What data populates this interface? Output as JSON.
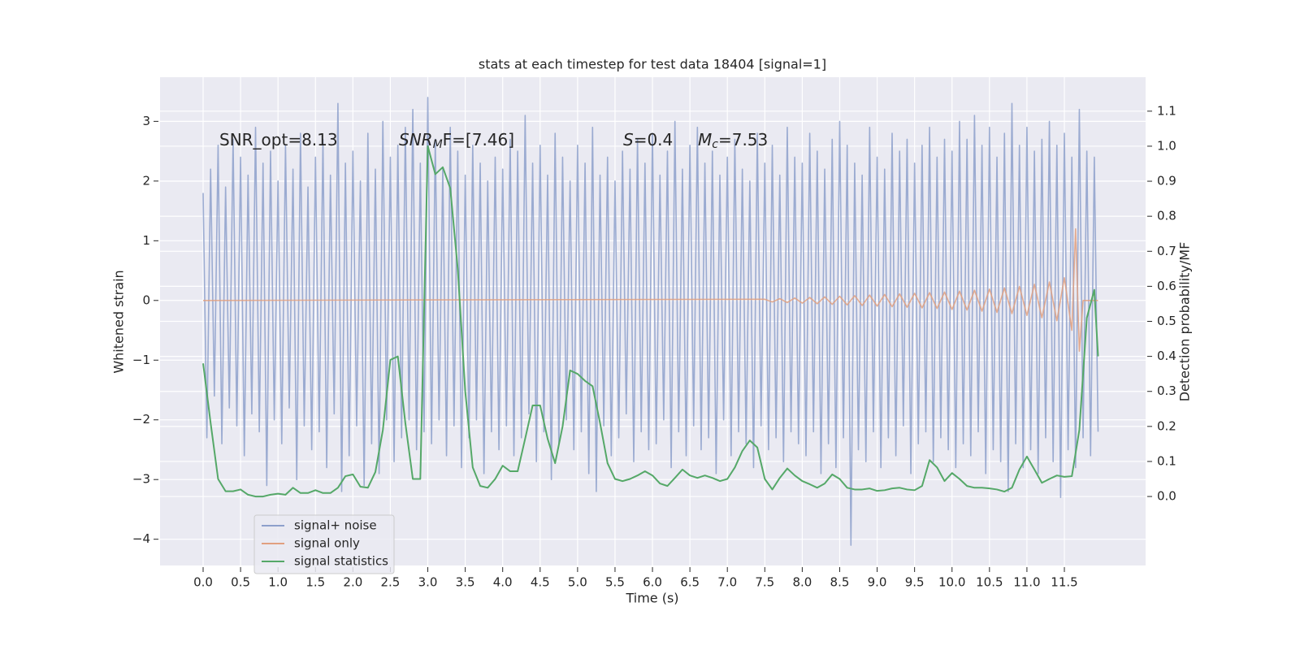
{
  "chart_data": {
    "type": "line",
    "title": "stats at each timestep for test data 18404 [signal=1]",
    "xlabel": "Time (s)",
    "ylabel": "Whitened strain",
    "y2label": "Detection probability/MF",
    "xlim": [
      -0.575,
      12.585
    ],
    "ylim": [
      -4.44,
      3.74
    ],
    "y2lim": [
      -0.197,
      1.197
    ],
    "xticks": [
      {
        "value": 0,
        "label": "0.0"
      },
      0.5,
      {
        "value": 1,
        "label": "1.0"
      },
      1.5,
      {
        "value": 2,
        "label": "2.0"
      },
      2.5,
      {
        "value": 3,
        "label": "3.0"
      },
      3.5,
      {
        "value": 4,
        "label": "4.0"
      },
      4.5,
      {
        "value": 5,
        "label": "5.0"
      },
      5.5,
      {
        "value": 6,
        "label": "6.0"
      },
      6.5,
      {
        "value": 7,
        "label": "7.0"
      },
      7.5,
      {
        "value": 8,
        "label": "8.0"
      },
      8.5,
      {
        "value": 9,
        "label": "9.0"
      },
      9.5,
      {
        "value": 10,
        "label": "10.0"
      },
      10.5,
      {
        "value": 11,
        "label": "11.0"
      },
      11.5
    ],
    "yticks": [
      {
        "value": -4,
        "label": "−4"
      },
      {
        "value": -3,
        "label": "−3"
      },
      {
        "value": -2,
        "label": "−2"
      },
      {
        "value": -1,
        "label": "−1"
      },
      0,
      1,
      2,
      3
    ],
    "y2ticks": [
      {
        "value": 0,
        "label": "0.0"
      },
      0.1,
      0.2,
      0.3,
      0.4,
      0.5,
      0.6,
      0.7,
      0.8,
      0.9,
      {
        "value": 1,
        "label": "1.0"
      },
      1.1
    ],
    "grid": true,
    "legend": "lower left",
    "annotations": [
      {
        "rest": "SNR_opt=8.13"
      },
      {
        "base": "SNR",
        "sub": "M",
        "rest": "F=[7.46]"
      },
      {
        "base": "S",
        "rest": "=0.4"
      },
      {
        "base": "M",
        "sub": "c",
        "rest": "=7.53"
      }
    ],
    "series": [
      {
        "name": "signal+ noise",
        "color": "#8da0cb",
        "x": [
          0,
          0.05,
          0.1,
          0.15,
          0.2,
          0.25,
          0.3,
          0.35,
          0.4,
          0.45,
          0.5,
          0.55,
          0.6,
          0.65,
          0.7,
          0.75,
          0.8,
          0.85,
          0.9,
          0.95,
          1,
          1.05,
          1.1,
          1.15,
          1.2,
          1.25,
          1.3,
          1.35,
          1.4,
          1.45,
          1.5,
          1.55,
          1.6,
          1.65,
          1.7,
          1.75,
          1.8,
          1.85,
          1.9,
          1.95,
          2,
          2.05,
          2.1,
          2.15,
          2.2,
          2.25,
          2.3,
          2.35,
          2.4,
          2.45,
          2.5,
          2.55,
          2.6,
          2.65,
          2.7,
          2.75,
          2.8,
          2.85,
          2.9,
          2.95,
          3,
          3.05,
          3.1,
          3.15,
          3.2,
          3.25,
          3.3,
          3.35,
          3.4,
          3.45,
          3.5,
          3.55,
          3.6,
          3.65,
          3.7,
          3.75,
          3.8,
          3.85,
          3.9,
          3.95,
          4,
          4.05,
          4.1,
          4.15,
          4.2,
          4.25,
          4.3,
          4.35,
          4.4,
          4.45,
          4.5,
          4.55,
          4.6,
          4.65,
          4.7,
          4.75,
          4.8,
          4.85,
          4.9,
          4.95,
          5,
          5.05,
          5.1,
          5.15,
          5.2,
          5.25,
          5.3,
          5.35,
          5.4,
          5.45,
          5.5,
          5.55,
          5.6,
          5.65,
          5.7,
          5.75,
          5.8,
          5.85,
          5.9,
          5.95,
          6,
          6.05,
          6.1,
          6.15,
          6.2,
          6.25,
          6.3,
          6.35,
          6.4,
          6.45,
          6.5,
          6.55,
          6.6,
          6.65,
          6.7,
          6.75,
          6.8,
          6.85,
          6.9,
          6.95,
          7,
          7.05,
          7.1,
          7.15,
          7.2,
          7.25,
          7.3,
          7.35,
          7.4,
          7.45,
          7.5,
          7.55,
          7.6,
          7.65,
          7.7,
          7.75,
          7.8,
          7.85,
          7.9,
          7.95,
          8,
          8.05,
          8.1,
          8.15,
          8.2,
          8.25,
          8.3,
          8.35,
          8.4,
          8.45,
          8.5,
          8.55,
          8.6,
          8.65,
          8.7,
          8.75,
          8.8,
          8.85,
          8.9,
          8.95,
          9,
          9.05,
          9.1,
          9.15,
          9.2,
          9.25,
          9.3,
          9.35,
          9.4,
          9.45,
          9.5,
          9.55,
          9.6,
          9.65,
          9.7,
          9.75,
          9.8,
          9.85,
          9.9,
          9.95,
          10,
          10.05,
          10.1,
          10.15,
          10.2,
          10.25,
          10.3,
          10.35,
          10.4,
          10.45,
          10.5,
          10.55,
          10.6,
          10.65,
          10.7,
          10.75,
          10.8,
          10.85,
          10.9,
          10.95,
          11,
          11.05,
          11.1,
          11.15,
          11.2,
          11.25,
          11.3,
          11.35,
          11.4,
          11.45,
          11.5,
          11.55,
          11.6,
          11.65,
          11.7,
          11.75,
          11.8,
          11.85,
          11.9,
          11.95
        ],
        "values": [
          1.8,
          -2.3,
          2.2,
          -1.6,
          2.6,
          -2.4,
          1.9,
          -1.8,
          2.7,
          -2.1,
          2.4,
          -2.6,
          2.1,
          -1.9,
          2.9,
          -2.2,
          2.3,
          -3.1,
          2.5,
          -2.0,
          2.0,
          -2.4,
          2.6,
          -1.8,
          2.2,
          -3.0,
          2.8,
          -2.1,
          1.9,
          -2.5,
          2.4,
          -2.2,
          2.7,
          -2.8,
          2.1,
          -1.9,
          3.3,
          -3.2,
          2.3,
          -2.6,
          2.5,
          -2.1,
          2.0,
          -3.1,
          2.8,
          -2.4,
          2.2,
          -2.9,
          3.0,
          -2.0,
          2.4,
          -2.7,
          2.6,
          -2.3,
          2.9,
          -2.0,
          3.2,
          -2.5,
          2.3,
          -2.2,
          3.4,
          -2.4,
          2.7,
          -2.0,
          2.2,
          -2.6,
          2.9,
          -2.1,
          2.5,
          -2.8,
          2.1,
          -2.3,
          2.6,
          -2.0,
          2.3,
          -2.9,
          2.0,
          -2.2,
          2.4,
          -2.5,
          2.2,
          -2.1,
          2.7,
          -2.6,
          2.5,
          -2.3,
          3.1,
          -1.9,
          2.3,
          -2.7,
          2.6,
          -2.2,
          2.1,
          -3.0,
          2.8,
          -2.4,
          2.4,
          -2.0,
          2.0,
          -2.5,
          2.6,
          -2.2,
          2.3,
          -2.9,
          2.9,
          -3.2,
          2.1,
          -2.1,
          2.4,
          -2.6,
          2.0,
          -2.3,
          2.5,
          -1.9,
          2.2,
          -2.7,
          2.7,
          -2.2,
          2.3,
          -2.5,
          2.8,
          -2.4,
          2.1,
          -2.0,
          2.5,
          -2.8,
          3.0,
          -2.2,
          2.2,
          -2.6,
          2.6,
          -2.1,
          2.9,
          -2.5,
          2.3,
          -2.3,
          2.5,
          -2.9,
          2.1,
          -2.0,
          2.4,
          -2.6,
          2.7,
          -2.2,
          2.2,
          -2.4,
          2.0,
          -2.8,
          2.8,
          -2.1,
          2.3,
          -2.5,
          2.6,
          -2.3,
          2.1,
          -2.7,
          2.9,
          -2.2,
          2.4,
          -2.4,
          2.3,
          -2.6,
          2.8,
          -2.2,
          2.5,
          -2.9,
          2.2,
          -2.4,
          2.7,
          -2.8,
          3.0,
          -2.3,
          2.6,
          -4.1,
          2.3,
          -2.5,
          2.1,
          -2.7,
          2.9,
          -2.2,
          2.4,
          -2.8,
          2.2,
          -2.3,
          2.8,
          -2.6,
          2.5,
          -2.1,
          2.7,
          -2.9,
          2.3,
          -2.4,
          2.6,
          -2.2,
          2.9,
          -2.7,
          2.4,
          -2.3,
          2.7,
          -2.5,
          2.5,
          -2.8,
          3.0,
          -2.4,
          2.7,
          -2.6,
          3.1,
          -2.2,
          2.6,
          -2.9,
          2.9,
          -2.5,
          2.4,
          -2.7,
          2.8,
          -3.2,
          3.3,
          -2.4,
          2.6,
          -2.8,
          2.9,
          -2.5,
          2.5,
          -2.9,
          2.7,
          -2.3,
          3.0,
          -2.7,
          2.6,
          -3.3,
          2.8,
          -2.5,
          2.4,
          -2.8,
          3.2,
          -2.3,
          2.5,
          -2.6,
          2.4,
          -2.2
        ]
      },
      {
        "name": "signal only",
        "color": "#e1a080",
        "x": [
          0,
          7.5,
          7.6,
          7.7,
          7.8,
          7.9,
          8.0,
          8.1,
          8.2,
          8.3,
          8.4,
          8.5,
          8.6,
          8.7,
          8.8,
          8.9,
          9.0,
          9.1,
          9.2,
          9.3,
          9.4,
          9.5,
          9.6,
          9.7,
          9.8,
          9.9,
          10.0,
          10.1,
          10.2,
          10.3,
          10.4,
          10.5,
          10.6,
          10.7,
          10.8,
          10.9,
          11.0,
          11.1,
          11.2,
          11.3,
          11.4,
          11.5,
          11.6,
          11.65,
          11.7,
          11.75,
          11.95
        ],
        "values": [
          0,
          0.02,
          -0.025,
          0.03,
          -0.035,
          0.04,
          -0.045,
          0.05,
          -0.055,
          0.06,
          -0.065,
          0.07,
          -0.075,
          0.08,
          -0.085,
          0.09,
          -0.095,
          0.1,
          -0.105,
          0.11,
          -0.115,
          0.12,
          -0.125,
          0.13,
          -0.135,
          0.14,
          -0.15,
          0.155,
          -0.16,
          0.17,
          -0.18,
          0.19,
          -0.2,
          0.21,
          -0.22,
          0.235,
          -0.25,
          0.27,
          -0.29,
          0.31,
          -0.34,
          0.38,
          -0.5,
          1.2,
          -0.85,
          0,
          0
        ]
      },
      {
        "name": "signal statistics",
        "color": "#55a868",
        "axis": "y2",
        "x": [
          0,
          0.1,
          0.2,
          0.3,
          0.4,
          0.5,
          0.6,
          0.7,
          0.8,
          0.9,
          1.0,
          1.1,
          1.2,
          1.3,
          1.4,
          1.5,
          1.6,
          1.7,
          1.8,
          1.9,
          2.0,
          2.1,
          2.2,
          2.3,
          2.4,
          2.5,
          2.6,
          2.7,
          2.8,
          2.9,
          3.0,
          3.1,
          3.2,
          3.3,
          3.4,
          3.5,
          3.6,
          3.7,
          3.8,
          3.9,
          4.0,
          4.1,
          4.2,
          4.3,
          4.4,
          4.5,
          4.6,
          4.7,
          4.8,
          4.9,
          5.0,
          5.1,
          5.2,
          5.3,
          5.4,
          5.5,
          5.6,
          5.7,
          5.8,
          5.9,
          6.0,
          6.1,
          6.2,
          6.3,
          6.4,
          6.5,
          6.6,
          6.7,
          6.8,
          6.9,
          7.0,
          7.1,
          7.2,
          7.3,
          7.4,
          7.5,
          7.6,
          7.7,
          7.8,
          7.9,
          8.0,
          8.1,
          8.2,
          8.3,
          8.4,
          8.5,
          8.6,
          8.7,
          8.8,
          8.9,
          9.0,
          9.1,
          9.2,
          9.3,
          9.4,
          9.5,
          9.6,
          9.7,
          9.8,
          9.9,
          10.0,
          10.1,
          10.2,
          10.3,
          10.4,
          10.5,
          10.6,
          10.7,
          10.8,
          10.9,
          11.0,
          11.1,
          11.2,
          11.3,
          11.4,
          11.5,
          11.6,
          11.7,
          11.8,
          11.9,
          11.95
        ],
        "values": [
          0.38,
          0.21,
          0.05,
          0.015,
          0.015,
          0.02,
          0.005,
          0,
          0,
          0.005,
          0.008,
          0.005,
          0.025,
          0.01,
          0.01,
          0.018,
          0.01,
          0.01,
          0.025,
          0.058,
          0.063,
          0.028,
          0.025,
          0.07,
          0.19,
          0.39,
          0.4,
          0.21,
          0.05,
          0.05,
          1.0,
          0.92,
          0.94,
          0.88,
          0.65,
          0.3,
          0.083,
          0.03,
          0.025,
          0.05,
          0.088,
          0.072,
          0.072,
          0.165,
          0.26,
          0.26,
          0.165,
          0.095,
          0.2,
          0.36,
          0.35,
          0.33,
          0.315,
          0.21,
          0.095,
          0.05,
          0.044,
          0.05,
          0.06,
          0.072,
          0.06,
          0.037,
          0.03,
          0.053,
          0.077,
          0.06,
          0.053,
          0.06,
          0.053,
          0.044,
          0.05,
          0.083,
          0.13,
          0.16,
          0.14,
          0.05,
          0.02,
          0.053,
          0.08,
          0.06,
          0.044,
          0.035,
          0.025,
          0.037,
          0.063,
          0.05,
          0.025,
          0.02,
          0.02,
          0.023,
          0.016,
          0.018,
          0.023,
          0.025,
          0.02,
          0.018,
          0.03,
          0.104,
          0.083,
          0.044,
          0.067,
          0.05,
          0.03,
          0.025,
          0.025,
          0.023,
          0.02,
          0.014,
          0.025,
          0.077,
          0.114,
          0.077,
          0.039,
          0.05,
          0.06,
          0.056,
          0.058,
          0.19,
          0.51,
          0.59,
          0.4
        ]
      }
    ]
  }
}
